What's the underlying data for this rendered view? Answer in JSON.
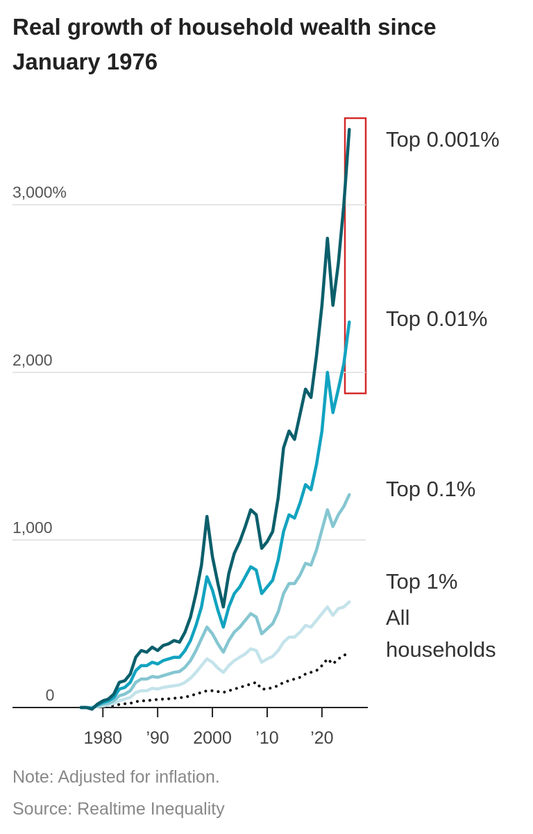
{
  "chart_data": {
    "type": "line",
    "title": "Real growth of household wealth since January 1976",
    "note": "Note: Adjusted for inflation.",
    "source": "Source: Realtime Inequality",
    "x": [
      1976,
      1977,
      1978,
      1979,
      1980,
      1981,
      1982,
      1983,
      1984,
      1985,
      1986,
      1987,
      1988,
      1989,
      1990,
      1991,
      1992,
      1993,
      1994,
      1995,
      1996,
      1997,
      1998,
      1999,
      2000,
      2001,
      2002,
      2003,
      2004,
      2005,
      2006,
      2007,
      2008,
      2009,
      2010,
      2011,
      2012,
      2013,
      2014,
      2015,
      2016,
      2017,
      2018,
      2019,
      2020,
      2021,
      2022,
      2023,
      2024,
      2025
    ],
    "series": [
      {
        "name": "Top 0.001%",
        "color": "#0b5f6b",
        "values": [
          0,
          0,
          -10,
          20,
          40,
          50,
          80,
          150,
          160,
          200,
          300,
          340,
          330,
          360,
          340,
          370,
          380,
          400,
          390,
          450,
          540,
          680,
          850,
          1140,
          900,
          740,
          600,
          800,
          920,
          990,
          1080,
          1180,
          1150,
          950,
          990,
          1050,
          1250,
          1550,
          1650,
          1600,
          1750,
          1900,
          1850,
          2100,
          2400,
          2800,
          2400,
          2650,
          3000,
          3450
        ]
      },
      {
        "name": "Top 0.01%",
        "color": "#12a3c0",
        "values": [
          0,
          0,
          -5,
          15,
          30,
          40,
          60,
          110,
          120,
          150,
          220,
          250,
          250,
          270,
          260,
          280,
          290,
          300,
          300,
          340,
          400,
          490,
          600,
          780,
          700,
          580,
          480,
          600,
          680,
          720,
          780,
          840,
          820,
          680,
          720,
          760,
          880,
          1050,
          1150,
          1130,
          1220,
          1330,
          1300,
          1450,
          1650,
          2000,
          1760,
          1900,
          2050,
          2300
        ]
      },
      {
        "name": "Top 0.1%",
        "color": "#85c6d1",
        "values": [
          0,
          0,
          0,
          10,
          20,
          25,
          40,
          70,
          80,
          100,
          150,
          170,
          170,
          185,
          180,
          190,
          200,
          210,
          215,
          240,
          280,
          340,
          410,
          480,
          440,
          380,
          330,
          400,
          450,
          480,
          520,
          560,
          540,
          440,
          470,
          500,
          570,
          680,
          740,
          740,
          790,
          860,
          850,
          940,
          1060,
          1180,
          1080,
          1150,
          1200,
          1270
        ]
      },
      {
        "name": "Top 1%",
        "color": "#c4e3ea",
        "values": [
          0,
          0,
          0,
          5,
          10,
          15,
          25,
          40,
          50,
          60,
          90,
          100,
          100,
          115,
          110,
          120,
          125,
          130,
          135,
          150,
          175,
          210,
          250,
          290,
          270,
          235,
          210,
          250,
          280,
          300,
          320,
          350,
          340,
          270,
          290,
          305,
          340,
          390,
          420,
          420,
          450,
          490,
          480,
          520,
          560,
          600,
          550,
          590,
          600,
          630
        ]
      },
      {
        "name": "All households",
        "color": "#111111",
        "dashed": true,
        "values": [
          0,
          0,
          0,
          3,
          5,
          8,
          12,
          18,
          22,
          25,
          35,
          40,
          40,
          45,
          48,
          50,
          52,
          55,
          58,
          62,
          70,
          80,
          90,
          100,
          100,
          95,
          90,
          100,
          110,
          120,
          130,
          140,
          150,
          110,
          110,
          120,
          130,
          150,
          160,
          170,
          180,
          200,
          210,
          220,
          250,
          290,
          260,
          290,
          310,
          330
        ]
      }
    ],
    "xlim": [
      1964,
      2028
    ],
    "xticks": [
      {
        "value": 1980,
        "label": "1980"
      },
      {
        "value": 1990,
        "label": "’90"
      },
      {
        "value": 2000,
        "label": "2000"
      },
      {
        "value": 2010,
        "label": "’10"
      },
      {
        "value": 2020,
        "label": "’20"
      }
    ],
    "ylim": [
      0,
      3600
    ],
    "yticks": [
      0,
      {
        "value": 1000,
        "label": "1,000"
      },
      {
        "value": 2000,
        "label": "2,000"
      },
      {
        "value": 3000,
        "label": "3,000%"
      }
    ],
    "grid": true
  }
}
